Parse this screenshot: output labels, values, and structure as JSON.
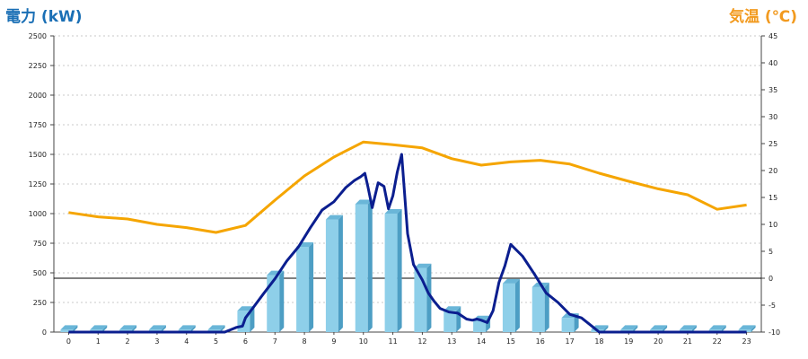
{
  "chart_data": {
    "type": "bar",
    "ylabel": "電力 (kW)",
    "y2label": "気温 (℃)",
    "x": [
      0,
      1,
      2,
      3,
      4,
      5,
      6,
      7,
      8,
      9,
      10,
      11,
      12,
      13,
      14,
      15,
      16,
      17,
      18,
      19,
      20,
      21,
      22,
      23
    ],
    "ylim": [
      0,
      2500
    ],
    "yticks": [
      0,
      250,
      500,
      750,
      1000,
      1250,
      1500,
      1750,
      2000,
      2250,
      2500
    ],
    "y2lim": [
      -10,
      45
    ],
    "y2ticks": [
      -10,
      -5,
      0,
      5,
      10,
      15,
      20,
      25,
      30,
      35,
      40,
      45
    ],
    "grid": true,
    "bars": {
      "color": "#8ecfe9",
      "values": [
        20,
        20,
        20,
        20,
        20,
        20,
        180,
        480,
        720,
        950,
        1080,
        1000,
        540,
        180,
        100,
        410,
        380,
        120,
        20,
        20,
        20,
        20,
        20,
        20
      ]
    },
    "temperature": {
      "color": "#f5a500",
      "x": [
        0,
        1,
        2,
        3,
        4,
        5,
        6,
        7,
        8,
        9,
        10,
        11,
        12,
        13,
        14,
        15,
        16,
        17,
        18,
        19,
        20,
        21,
        22,
        23
      ],
      "values": [
        12.2,
        11.4,
        11.0,
        10.0,
        9.4,
        8.5,
        9.8,
        14.5,
        19.0,
        22.5,
        25.3,
        24.8,
        24.2,
        22.2,
        21.0,
        21.6,
        21.9,
        21.2,
        19.5,
        18.0,
        16.6,
        15.5,
        12.8,
        13.6
      ]
    },
    "power": {
      "color": "#0b1e8f",
      "x": [
        0,
        1,
        2,
        3,
        4,
        5,
        5.3,
        5.7,
        5.9,
        6.0,
        6.3,
        6.6,
        7.0,
        7.4,
        7.8,
        8.2,
        8.6,
        9.0,
        9.4,
        9.7,
        9.9,
        10.05,
        10.15,
        10.3,
        10.5,
        10.7,
        10.85,
        11.0,
        11.15,
        11.3,
        11.5,
        11.7,
        12.0,
        12.2,
        12.4,
        12.6,
        12.9,
        13.2,
        13.5,
        13.7,
        13.85,
        14.0,
        14.2,
        14.4,
        14.6,
        14.8,
        15.0,
        15.4,
        15.8,
        16.2,
        16.6,
        17.0,
        17.4,
        17.8,
        18,
        19,
        20,
        21,
        22,
        23
      ],
      "values": [
        0,
        0,
        0,
        0,
        0,
        0,
        0,
        40,
        50,
        120,
        220,
        320,
        450,
        600,
        720,
        880,
        1030,
        1100,
        1220,
        1280,
        1310,
        1340,
        1230,
        1050,
        1260,
        1230,
        1040,
        1150,
        1350,
        1500,
        830,
        570,
        440,
        330,
        260,
        200,
        170,
        160,
        110,
        100,
        110,
        100,
        80,
        180,
        420,
        560,
        740,
        640,
        490,
        330,
        250,
        150,
        120,
        40,
        0,
        0,
        0,
        0,
        0,
        0
      ]
    }
  }
}
